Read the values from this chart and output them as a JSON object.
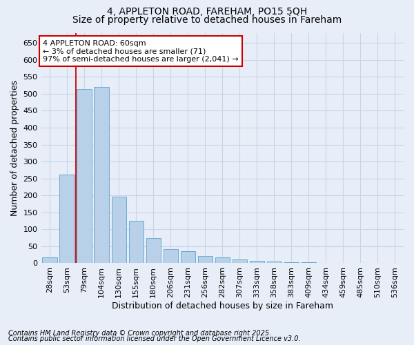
{
  "title1": "4, APPLETON ROAD, FAREHAM, PO15 5QH",
  "title2": "Size of property relative to detached houses in Fareham",
  "xlabel": "Distribution of detached houses by size in Fareham",
  "ylabel": "Number of detached properties",
  "categories": [
    "28sqm",
    "53sqm",
    "79sqm",
    "104sqm",
    "130sqm",
    "155sqm",
    "180sqm",
    "206sqm",
    "231sqm",
    "256sqm",
    "282sqm",
    "307sqm",
    "333sqm",
    "358sqm",
    "383sqm",
    "409sqm",
    "434sqm",
    "459sqm",
    "485sqm",
    "510sqm",
    "536sqm"
  ],
  "values": [
    18,
    262,
    515,
    520,
    197,
    125,
    75,
    42,
    35,
    22,
    18,
    12,
    8,
    5,
    3,
    2,
    1,
    0,
    0,
    0,
    1
  ],
  "bar_color": "#b8d0e8",
  "bar_edge_color": "#6aaad4",
  "grid_color": "#c8d4e8",
  "background_color": "#e8eef8",
  "vline_color": "#cc0000",
  "annotation_text": "4 APPLETON ROAD: 60sqm\n← 3% of detached houses are smaller (71)\n97% of semi-detached houses are larger (2,041) →",
  "annotation_box_color": "#ffffff",
  "annotation_box_edge_color": "#cc0000",
  "footnote1": "Contains HM Land Registry data © Crown copyright and database right 2025.",
  "footnote2": "Contains public sector information licensed under the Open Government Licence v3.0.",
  "ylim": [
    0,
    680
  ],
  "yticks": [
    0,
    50,
    100,
    150,
    200,
    250,
    300,
    350,
    400,
    450,
    500,
    550,
    600,
    650
  ],
  "title1_fontsize": 10,
  "title2_fontsize": 10,
  "axis_label_fontsize": 9,
  "tick_fontsize": 8,
  "annotation_fontsize": 8,
  "footnote_fontsize": 7
}
